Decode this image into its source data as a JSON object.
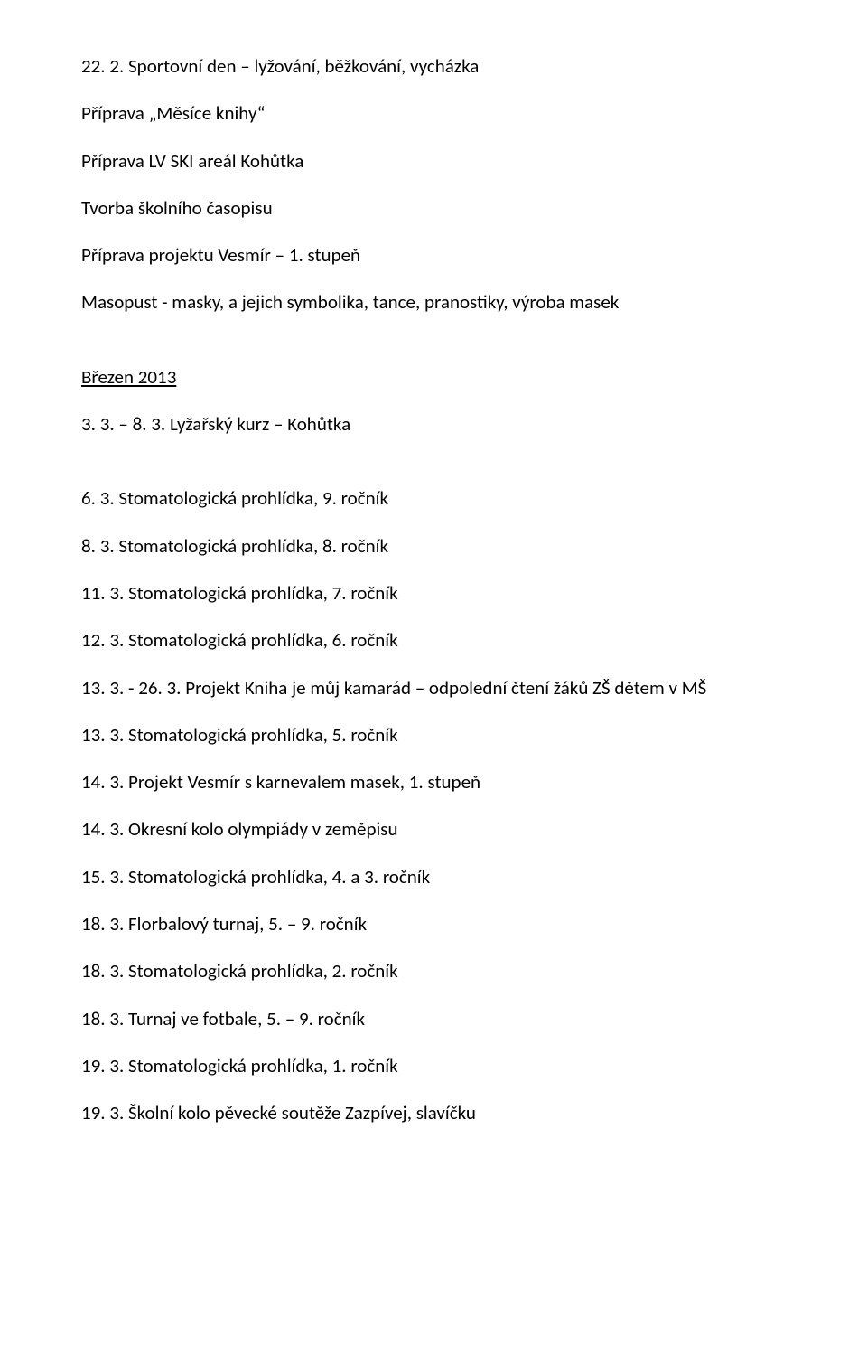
{
  "lines": [
    {
      "text": "22. 2. Sportovní den – lyžování, běžkování,  vycházka",
      "underline": false,
      "spacer": false
    },
    {
      "text": "Příprava „Měsíce knihy“",
      "underline": false,
      "spacer": false
    },
    {
      "text": "Příprava LV  SKI areál Kohůtka",
      "underline": false,
      "spacer": false
    },
    {
      "text": "Tvorba  školního časopisu",
      "underline": false,
      "spacer": false
    },
    {
      "text": "Příprava projektu Vesmír – 1. stupeň",
      "underline": false,
      "spacer": false
    },
    {
      "text": "Masopust - masky, a jejich symbolika, tance, pranostiky, výroba masek",
      "underline": false,
      "spacer": true
    },
    {
      "text": "Březen 2013",
      "underline": true,
      "spacer": false
    },
    {
      "text": "3. 3. – 8. 3. Lyžařský kurz – Kohůtka",
      "underline": false,
      "spacer": true
    },
    {
      "text": "6. 3. Stomatologická prohlídka, 9. ročník",
      "underline": false,
      "spacer": false
    },
    {
      "text": "8. 3. Stomatologická prohlídka, 8. ročník",
      "underline": false,
      "spacer": false
    },
    {
      "text": "11. 3. Stomatologická prohlídka, 7. ročník",
      "underline": false,
      "spacer": false
    },
    {
      "text": "12. 3. Stomatologická prohlídka, 6. ročník",
      "underline": false,
      "spacer": false
    },
    {
      "text": "13. 3. - 26. 3. Projekt Kniha je můj kamarád – odpolední čtení žáků ZŠ dětem v MŠ",
      "underline": false,
      "spacer": false
    },
    {
      "text": "13. 3. Stomatologická prohlídka, 5. ročník",
      "underline": false,
      "spacer": false
    },
    {
      "text": "14. 3. Projekt Vesmír s karnevalem masek, 1. stupeň",
      "underline": false,
      "spacer": false
    },
    {
      "text": "14. 3. Okresní kolo olympiády v zeměpisu",
      "underline": false,
      "spacer": false
    },
    {
      "text": "15. 3. Stomatologická prohlídka, 4. a 3. ročník",
      "underline": false,
      "spacer": false
    },
    {
      "text": "18. 3. Florbalový turnaj, 5. – 9. ročník",
      "underline": false,
      "spacer": false
    },
    {
      "text": "18. 3. Stomatologická prohlídka,  2. ročník",
      "underline": false,
      "spacer": false
    },
    {
      "text": "18. 3. Turnaj ve fotbale, 5. – 9. ročník",
      "underline": false,
      "spacer": false
    },
    {
      "text": "19. 3. Stomatologická prohlídka,  1. ročník",
      "underline": false,
      "spacer": false
    },
    {
      "text": "19. 3. Školní kolo pěvecké soutěže Zazpívej, slavíčku",
      "underline": false,
      "spacer": false
    }
  ]
}
